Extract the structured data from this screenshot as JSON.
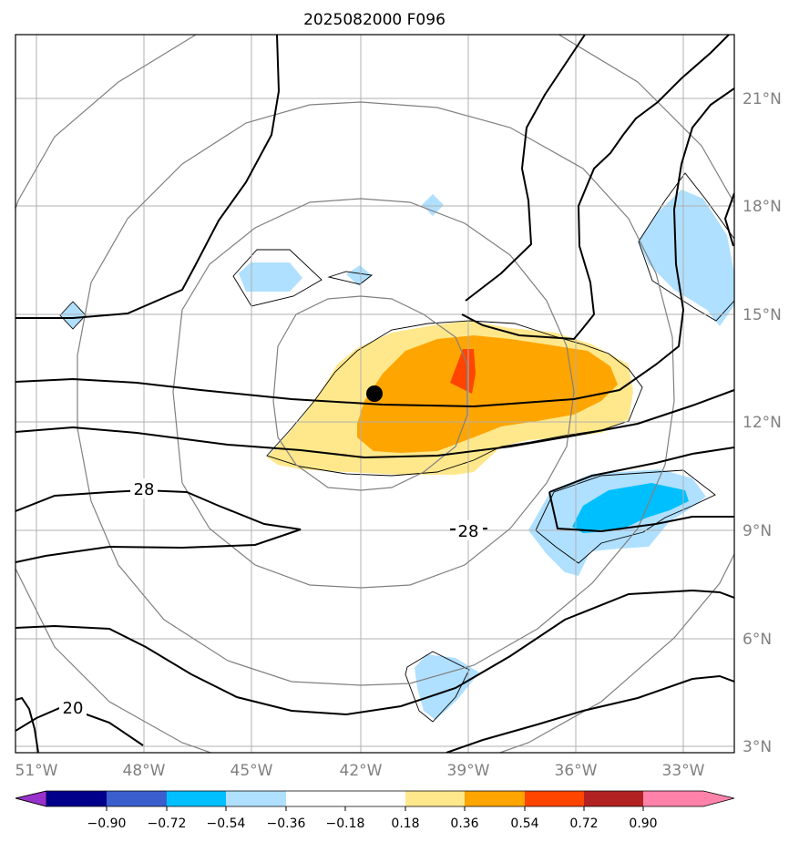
{
  "title": "2025082000 F096",
  "lat_labels": [
    "21°N",
    "18°N",
    "15°N",
    "12°N",
    "9°N",
    "6°N",
    "3°N"
  ],
  "lon_labels": [
    "51°W",
    "48°W",
    "45°W",
    "42°W",
    "39°W",
    "36°W",
    "33°W"
  ],
  "contour_labels": {
    "label_28a": "28",
    "label_28b": "28",
    "label_20": "20"
  },
  "colorbar": {
    "ticks": [
      "−0.90",
      "−0.72",
      "−0.54",
      "−0.36",
      "−0.18",
      "0.18",
      "0.36",
      "0.54",
      "0.72",
      "0.90"
    ],
    "colors": [
      "#9932CC",
      "#00008B",
      "#3A5FCD",
      "#00BFFF",
      "#B0E0FF",
      "#FFFFFF",
      "#FFE88C",
      "#FFA500",
      "#FF4500",
      "#B22222",
      "#FF82AB"
    ]
  },
  "center_marker": {
    "lon": -41.6,
    "lat": 12.8
  }
}
